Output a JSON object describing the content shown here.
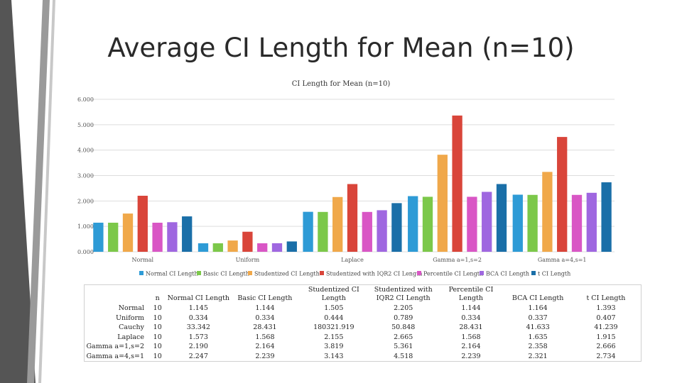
{
  "slide": {
    "title": "Average CI Length for Mean (n=10)"
  },
  "colors": {
    "series": [
      "#2E9BD6",
      "#7CC84A",
      "#F0A84A",
      "#D9453A",
      "#D956C5",
      "#9F67E0",
      "#1A6FA8"
    ],
    "gridline": "#dddddd",
    "deco_dark": "#555555",
    "deco_light": "#9a9a9a"
  },
  "chart_data": {
    "type": "bar",
    "title": "CI Length for Mean (n=10)",
    "xlabel": "",
    "ylabel": "",
    "ylim": [
      0,
      6
    ],
    "yticks": [
      "0.000",
      "1.000",
      "2.000",
      "3.000",
      "4.000",
      "5.000",
      "6.000"
    ],
    "grid": true,
    "legend": "bottom",
    "categories": [
      "Normal",
      "Uniform",
      "Laplace",
      "Gamma a=1,s=2",
      "Gamma a=4,s=1"
    ],
    "series": [
      {
        "name": "Normal CI Length",
        "values": [
          1.145,
          0.334,
          1.573,
          2.19,
          2.247
        ]
      },
      {
        "name": "Basic CI Length",
        "values": [
          1.144,
          0.334,
          1.568,
          2.164,
          2.239
        ]
      },
      {
        "name": "Studentized CI Length",
        "values": [
          1.505,
          0.444,
          2.155,
          3.819,
          3.143
        ]
      },
      {
        "name": "Studentized with IQR2 CI Length",
        "values": [
          2.205,
          0.789,
          2.665,
          5.361,
          4.518
        ]
      },
      {
        "name": "Percentile CI Length",
        "values": [
          1.144,
          0.334,
          1.568,
          2.164,
          2.239
        ]
      },
      {
        "name": "BCA CI Length",
        "values": [
          1.164,
          0.337,
          1.635,
          2.358,
          2.321
        ]
      },
      {
        "name": "t CI Length",
        "values": [
          1.393,
          0.407,
          1.915,
          2.666,
          2.734
        ]
      }
    ]
  },
  "table": {
    "headers": [
      "",
      "n",
      "Normal CI Length",
      "Basic CI Length",
      "Studentized CI Length",
      "Studentized with IQR2 CI Length",
      "Percentile CI Length",
      "BCA CI Length",
      "t CI Length"
    ],
    "rows": [
      [
        "Normal",
        "10",
        "1.145",
        "1.144",
        "1.505",
        "2.205",
        "1.144",
        "1.164",
        "1.393"
      ],
      [
        "Uniform",
        "10",
        "0.334",
        "0.334",
        "0.444",
        "0.789",
        "0.334",
        "0.337",
        "0.407"
      ],
      [
        "Cauchy",
        "10",
        "33.342",
        "28.431",
        "180321.919",
        "50.848",
        "28.431",
        "41.633",
        "41.239"
      ],
      [
        "Laplace",
        "10",
        "1.573",
        "1.568",
        "2.155",
        "2.665",
        "1.568",
        "1.635",
        "1.915"
      ],
      [
        "Gamma a=1,s=2",
        "10",
        "2.190",
        "2.164",
        "3.819",
        "5.361",
        "2.164",
        "2.358",
        "2.666"
      ],
      [
        "Gamma a=4,s=1",
        "10",
        "2.247",
        "2.239",
        "3.143",
        "4.518",
        "2.239",
        "2.321",
        "2.734"
      ]
    ]
  }
}
